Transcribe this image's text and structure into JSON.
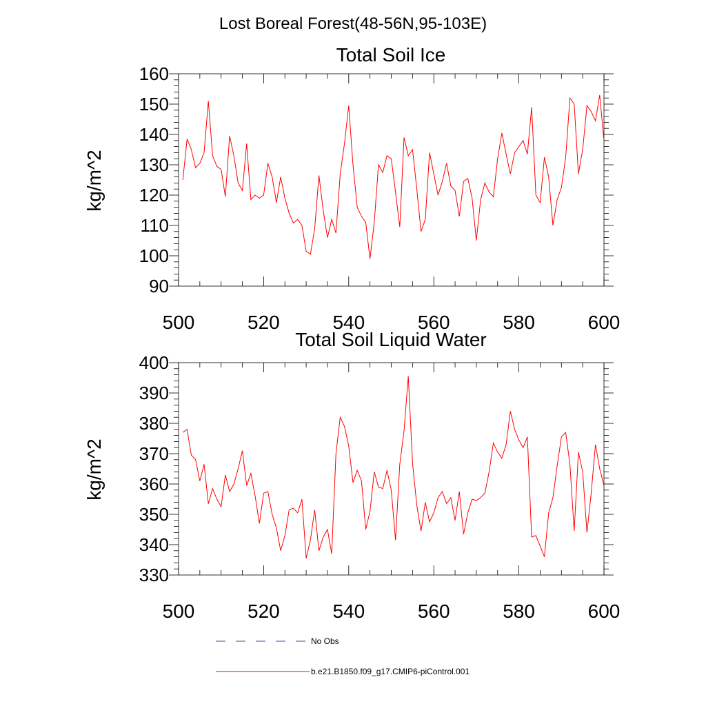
{
  "figure_title": "Lost Boreal Forest(48-56N,95-103E)",
  "chart_data": [
    {
      "type": "line",
      "title": "Total Soil Ice",
      "xlabel": "",
      "ylabel": "kg/m^2",
      "xlim": [
        500,
        600
      ],
      "ylim": [
        90,
        160
      ],
      "x_ticks": [
        500,
        520,
        540,
        560,
        580,
        600
      ],
      "y_ticks": [
        90,
        100,
        110,
        120,
        130,
        140,
        150,
        160
      ],
      "series": [
        {
          "name": "b.e21.B1850.f09_g17.CMIP6-piControl.001",
          "color": "#ff0000",
          "x_start": 501,
          "values": [
            125,
            138.5,
            135,
            129,
            130.5,
            134,
            151,
            133,
            129.5,
            128.5,
            119.5,
            139.5,
            133,
            124,
            121.5,
            137,
            118.5,
            120,
            119,
            120,
            130.5,
            126,
            117.5,
            126,
            119,
            114,
            110.8,
            112,
            110,
            101.5,
            100.5,
            109,
            126.5,
            115,
            106,
            112,
            107.5,
            127,
            137,
            149.5,
            130,
            116,
            113,
            111,
            99,
            111,
            130,
            127.5,
            133,
            132,
            121,
            109.5,
            139,
            133,
            135,
            122,
            108,
            112,
            134,
            127,
            120,
            124.5,
            130.5,
            123,
            121.5,
            113,
            124.5,
            125.5,
            119,
            105,
            118.5,
            124,
            121,
            119.5,
            132,
            140.5,
            133.5,
            127,
            134,
            136,
            138,
            133.5,
            149,
            120,
            117.5,
            132.5,
            126,
            110,
            118.5,
            122.5,
            132.5,
            152,
            150,
            127,
            135,
            149.5,
            147.5,
            144.5,
            153,
            138
          ]
        }
      ]
    },
    {
      "type": "line",
      "title": "Total Soil Liquid Water",
      "xlabel": "",
      "ylabel": "kg/m^2",
      "xlim": [
        500,
        600
      ],
      "ylim": [
        330,
        400
      ],
      "x_ticks": [
        500,
        520,
        540,
        560,
        580,
        600
      ],
      "y_ticks": [
        330,
        340,
        350,
        360,
        370,
        380,
        390,
        400
      ],
      "series": [
        {
          "name": "b.e21.B1850.f09_g17.CMIP6-piControl.001",
          "color": "#ff0000",
          "x_start": 501,
          "values": [
            377,
            378,
            369.5,
            368,
            361,
            366.5,
            353.5,
            358.5,
            355,
            352.5,
            363,
            357.5,
            360,
            365,
            371,
            359.5,
            363.5,
            356,
            347,
            357,
            357.5,
            350,
            345.5,
            338,
            343,
            351.5,
            352,
            350.5,
            355,
            335.5,
            341.5,
            351.5,
            338,
            342.5,
            345,
            337,
            370,
            382,
            379,
            372.5,
            360.5,
            364.5,
            361,
            345,
            351,
            364,
            359,
            358.5,
            364.5,
            358,
            341.5,
            366.5,
            377.5,
            395.5,
            367,
            353,
            344.5,
            354,
            347.5,
            350.5,
            355.5,
            357.5,
            353.5,
            355.5,
            348,
            357.5,
            343.5,
            350.5,
            355,
            354.5,
            355.5,
            357,
            364,
            373.5,
            370.5,
            368.5,
            373,
            384,
            378,
            374.5,
            372,
            375.5,
            342.5,
            343,
            339.5,
            336,
            350.5,
            355.5,
            366,
            375.5,
            377,
            366.5,
            344.5,
            370.5,
            364,
            344,
            357,
            373,
            365,
            359.5
          ]
        }
      ]
    }
  ],
  "legend": [
    {
      "label": "No Obs",
      "color": "#3b4a9c",
      "style": "dashed"
    },
    {
      "label": "b.e21.B1850.f09_g17.CMIP6-piControl.001",
      "color": "#ff0000",
      "style": "solid"
    }
  ]
}
